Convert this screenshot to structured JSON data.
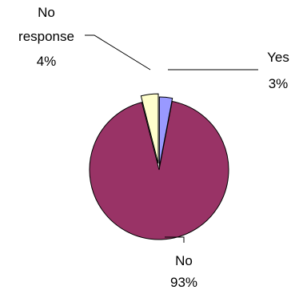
{
  "chart_data": {
    "type": "pie",
    "title": "",
    "legend": "none",
    "slices": [
      {
        "category": "Yes",
        "percent_label": "3%",
        "value": 3,
        "color": "#9999ff"
      },
      {
        "category": "No",
        "percent_label": "93%",
        "value": 93,
        "color": "#993366"
      },
      {
        "category": "No response",
        "category_lines": [
          "No",
          "response"
        ],
        "percent_label": "4%",
        "value": 4,
        "color": "#ffffcc"
      }
    ]
  }
}
